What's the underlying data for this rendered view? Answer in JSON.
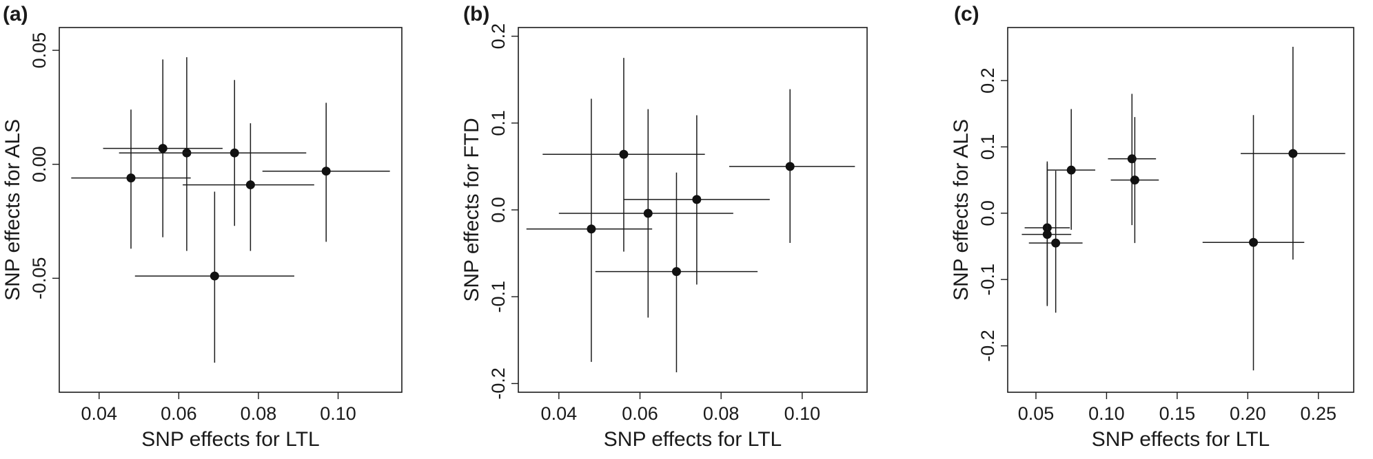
{
  "chart_data": [
    {
      "type": "scatter",
      "panel_label": "(a)",
      "xlabel": "SNP effects for LTL",
      "ylabel": "SNP effects for ALS",
      "xlim": [
        0.03,
        0.116
      ],
      "ylim": [
        -0.1,
        0.06
      ],
      "xticks": [
        0.04,
        0.06,
        0.08,
        0.1
      ],
      "xtick_labels": [
        "0.04",
        "0.06",
        "0.08",
        "0.10"
      ],
      "yticks": [
        -0.05,
        0.0,
        0.05
      ],
      "ytick_labels": [
        "-0.05",
        "0.00",
        "0.05"
      ],
      "points": [
        {
          "x": 0.048,
          "y": -0.006,
          "xlo": 0.033,
          "xhi": 0.063,
          "ylo": -0.037,
          "yhi": 0.024
        },
        {
          "x": 0.056,
          "y": 0.007,
          "xlo": 0.041,
          "xhi": 0.071,
          "ylo": -0.032,
          "yhi": 0.046
        },
        {
          "x": 0.062,
          "y": 0.005,
          "xlo": 0.045,
          "xhi": 0.079,
          "ylo": -0.038,
          "yhi": 0.047
        },
        {
          "x": 0.069,
          "y": -0.049,
          "xlo": 0.049,
          "xhi": 0.089,
          "ylo": -0.087,
          "yhi": -0.012
        },
        {
          "x": 0.074,
          "y": 0.005,
          "xlo": 0.055,
          "xhi": 0.092,
          "ylo": -0.027,
          "yhi": 0.037
        },
        {
          "x": 0.078,
          "y": -0.009,
          "xlo": 0.061,
          "xhi": 0.094,
          "ylo": -0.038,
          "yhi": 0.018
        },
        {
          "x": 0.097,
          "y": -0.003,
          "xlo": 0.081,
          "xhi": 0.113,
          "ylo": -0.034,
          "yhi": 0.027
        }
      ]
    },
    {
      "type": "scatter",
      "panel_label": "(b)",
      "xlabel": "SNP effects for LTL",
      "ylabel": "SNP effects for FTD",
      "xlim": [
        0.03,
        0.116
      ],
      "ylim": [
        -0.21,
        0.21
      ],
      "xticks": [
        0.04,
        0.06,
        0.08,
        0.1
      ],
      "xtick_labels": [
        "0.04",
        "0.06",
        "0.08",
        "0.10"
      ],
      "yticks": [
        -0.2,
        -0.1,
        0.0,
        0.1,
        0.2
      ],
      "ytick_labels": [
        "-0.2",
        "-0.1",
        "0.0",
        "0.1",
        "0.2"
      ],
      "points": [
        {
          "x": 0.048,
          "y": -0.022,
          "xlo": 0.032,
          "xhi": 0.063,
          "ylo": -0.175,
          "yhi": 0.128
        },
        {
          "x": 0.056,
          "y": 0.064,
          "xlo": 0.036,
          "xhi": 0.076,
          "ylo": -0.048,
          "yhi": 0.175
        },
        {
          "x": 0.062,
          "y": -0.004,
          "xlo": 0.04,
          "xhi": 0.083,
          "ylo": -0.124,
          "yhi": 0.116
        },
        {
          "x": 0.069,
          "y": -0.071,
          "xlo": 0.049,
          "xhi": 0.089,
          "ylo": -0.187,
          "yhi": 0.043
        },
        {
          "x": 0.074,
          "y": 0.012,
          "xlo": 0.056,
          "xhi": 0.092,
          "ylo": -0.086,
          "yhi": 0.109
        },
        {
          "x": 0.097,
          "y": 0.05,
          "xlo": 0.082,
          "xhi": 0.113,
          "ylo": -0.038,
          "yhi": 0.139
        }
      ]
    },
    {
      "type": "scatter",
      "panel_label": "(c)",
      "xlabel": "SNP effects for LTL",
      "ylabel": "SNP effects for ALS",
      "xlim": [
        0.03,
        0.275
      ],
      "ylim": [
        -0.27,
        0.28
      ],
      "xticks": [
        0.05,
        0.1,
        0.15,
        0.2,
        0.25
      ],
      "xtick_labels": [
        "0.05",
        "0.10",
        "0.15",
        "0.20",
        "0.25"
      ],
      "yticks": [
        -0.2,
        -0.1,
        0.0,
        0.1,
        0.2
      ],
      "ytick_labels": [
        "-0.2",
        "-0.1",
        "0.0",
        "0.1",
        "0.2"
      ],
      "points": [
        {
          "x": 0.058,
          "y": -0.022,
          "xlo": 0.042,
          "xhi": 0.074,
          "ylo": -0.138,
          "yhi": 0.078
        },
        {
          "x": 0.058,
          "y": -0.032,
          "xlo": 0.04,
          "xhi": 0.075,
          "ylo": -0.14,
          "yhi": 0.075
        },
        {
          "x": 0.064,
          "y": -0.045,
          "xlo": 0.045,
          "xhi": 0.083,
          "ylo": -0.15,
          "yhi": 0.064
        },
        {
          "x": 0.075,
          "y": 0.065,
          "xlo": 0.058,
          "xhi": 0.092,
          "ylo": -0.025,
          "yhi": 0.157
        },
        {
          "x": 0.118,
          "y": 0.082,
          "xlo": 0.101,
          "xhi": 0.135,
          "ylo": -0.018,
          "yhi": 0.18
        },
        {
          "x": 0.12,
          "y": 0.05,
          "xlo": 0.103,
          "xhi": 0.137,
          "ylo": -0.045,
          "yhi": 0.145
        },
        {
          "x": 0.204,
          "y": -0.044,
          "xlo": 0.168,
          "xhi": 0.24,
          "ylo": -0.237,
          "yhi": 0.148
        },
        {
          "x": 0.232,
          "y": 0.09,
          "xlo": 0.195,
          "xhi": 0.269,
          "ylo": -0.07,
          "yhi": 0.251
        }
      ]
    }
  ]
}
